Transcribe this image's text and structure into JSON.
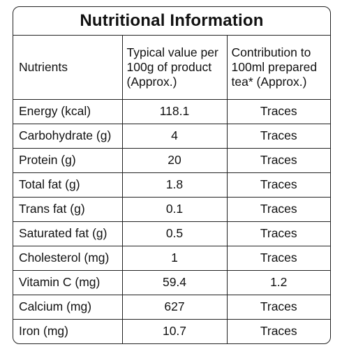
{
  "title": "Nutritional Information",
  "headers": {
    "nutrients": "Nutrients",
    "typical_value": "Typical value per 100g of product (Approx.)",
    "contribution": "Contribution to 100ml prepared tea* (Approx.)"
  },
  "rows": [
    {
      "nutrient": "Energy (kcal)",
      "value": "118.1",
      "contribution": "Traces"
    },
    {
      "nutrient": "Carbohydrate (g)",
      "value": "4",
      "contribution": "Traces"
    },
    {
      "nutrient": "Protein (g)",
      "value": "20",
      "contribution": "Traces"
    },
    {
      "nutrient": "Total fat (g)",
      "value": "1.8",
      "contribution": "Traces"
    },
    {
      "nutrient": "Trans fat (g)",
      "value": "0.1",
      "contribution": "Traces"
    },
    {
      "nutrient": "Saturated fat (g)",
      "value": "0.5",
      "contribution": "Traces"
    },
    {
      "nutrient": "Cholesterol (mg)",
      "value": "1",
      "contribution": "Traces"
    },
    {
      "nutrient": "Vitamin C (mg)",
      "value": "59.4",
      "contribution": "1.2"
    },
    {
      "nutrient": "Calcium (mg)",
      "value": "627",
      "contribution": "Traces"
    },
    {
      "nutrient": "Iron (mg)",
      "value": "10.7",
      "contribution": "Traces"
    }
  ]
}
